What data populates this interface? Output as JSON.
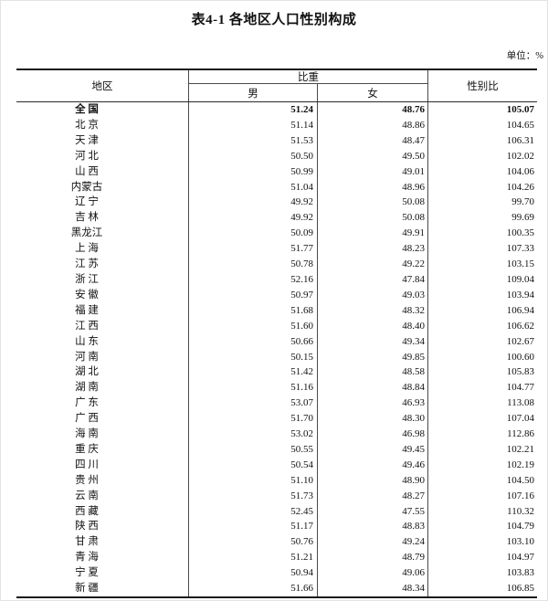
{
  "page": {
    "title": "表4-1 各地区人口性别构成",
    "unit_note": "单位：%"
  },
  "table": {
    "header": {
      "region": "地区",
      "proportion": "比重",
      "male": "男",
      "female": "女",
      "sex_ratio": "性别比"
    },
    "rows": [
      {
        "region": "全 国",
        "male": "51.24",
        "female": "48.76",
        "ratio": "105.07",
        "bold": true
      },
      {
        "region": "北 京",
        "male": "51.14",
        "female": "48.86",
        "ratio": "104.65"
      },
      {
        "region": "天 津",
        "male": "51.53",
        "female": "48.47",
        "ratio": "106.31"
      },
      {
        "region": "河 北",
        "male": "50.50",
        "female": "49.50",
        "ratio": "102.02"
      },
      {
        "region": "山 西",
        "male": "50.99",
        "female": "49.01",
        "ratio": "104.06"
      },
      {
        "region": "内蒙古",
        "male": "51.04",
        "female": "48.96",
        "ratio": "104.26"
      },
      {
        "region": "辽 宁",
        "male": "49.92",
        "female": "50.08",
        "ratio": "99.70"
      },
      {
        "region": "吉 林",
        "male": "49.92",
        "female": "50.08",
        "ratio": "99.69"
      },
      {
        "region": "黑龙江",
        "male": "50.09",
        "female": "49.91",
        "ratio": "100.35"
      },
      {
        "region": "上 海",
        "male": "51.77",
        "female": "48.23",
        "ratio": "107.33"
      },
      {
        "region": "江 苏",
        "male": "50.78",
        "female": "49.22",
        "ratio": "103.15"
      },
      {
        "region": "浙 江",
        "male": "52.16",
        "female": "47.84",
        "ratio": "109.04"
      },
      {
        "region": "安 徽",
        "male": "50.97",
        "female": "49.03",
        "ratio": "103.94"
      },
      {
        "region": "福 建",
        "male": "51.68",
        "female": "48.32",
        "ratio": "106.94"
      },
      {
        "region": "江 西",
        "male": "51.60",
        "female": "48.40",
        "ratio": "106.62"
      },
      {
        "region": "山 东",
        "male": "50.66",
        "female": "49.34",
        "ratio": "102.67"
      },
      {
        "region": "河 南",
        "male": "50.15",
        "female": "49.85",
        "ratio": "100.60"
      },
      {
        "region": "湖 北",
        "male": "51.42",
        "female": "48.58",
        "ratio": "105.83"
      },
      {
        "region": "湖 南",
        "male": "51.16",
        "female": "48.84",
        "ratio": "104.77"
      },
      {
        "region": "广 东",
        "male": "53.07",
        "female": "46.93",
        "ratio": "113.08"
      },
      {
        "region": "广 西",
        "male": "51.70",
        "female": "48.30",
        "ratio": "107.04"
      },
      {
        "region": "海 南",
        "male": "53.02",
        "female": "46.98",
        "ratio": "112.86"
      },
      {
        "region": "重 庆",
        "male": "50.55",
        "female": "49.45",
        "ratio": "102.21"
      },
      {
        "region": "四 川",
        "male": "50.54",
        "female": "49.46",
        "ratio": "102.19"
      },
      {
        "region": "贵 州",
        "male": "51.10",
        "female": "48.90",
        "ratio": "104.50"
      },
      {
        "region": "云 南",
        "male": "51.73",
        "female": "48.27",
        "ratio": "107.16"
      },
      {
        "region": "西 藏",
        "male": "52.45",
        "female": "47.55",
        "ratio": "110.32"
      },
      {
        "region": "陕 西",
        "male": "51.17",
        "female": "48.83",
        "ratio": "104.79"
      },
      {
        "region": "甘 肃",
        "male": "50.76",
        "female": "49.24",
        "ratio": "103.10"
      },
      {
        "region": "青 海",
        "male": "51.21",
        "female": "48.79",
        "ratio": "104.97"
      },
      {
        "region": "宁 夏",
        "male": "50.94",
        "female": "49.06",
        "ratio": "103.83"
      },
      {
        "region": "新 疆",
        "male": "51.66",
        "female": "48.34",
        "ratio": "106.85"
      }
    ]
  }
}
